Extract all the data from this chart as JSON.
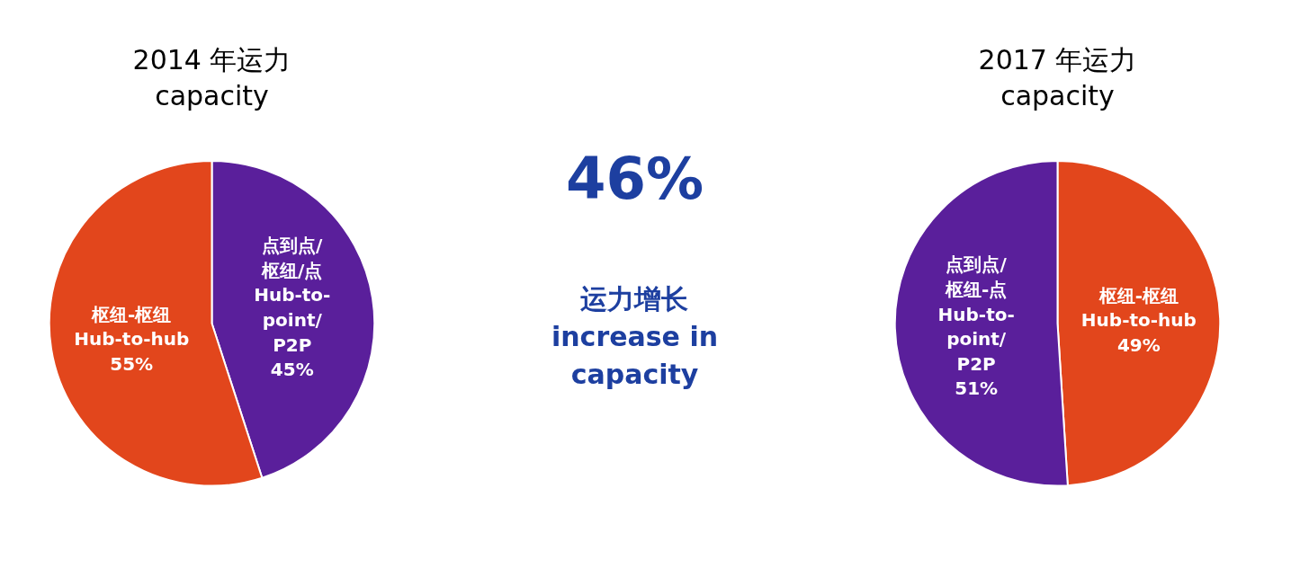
{
  "chart_data": [
    {
      "type": "pie",
      "title": "2014 年运力\ncapacity",
      "categories": [
        "点到点/\n枢纽/点\nHub-to-\npoint/\nP2P",
        "枢纽-枢纽\nHub-to-hub"
      ],
      "values": [
        45,
        55
      ],
      "value_labels": [
        "45%",
        "55%"
      ],
      "colors": [
        "#5a1f9b",
        "#e2461c"
      ],
      "legend": false
    },
    {
      "type": "other",
      "annotations": [
        "46%",
        "运力增长\nincrease in\ncapacity"
      ]
    },
    {
      "type": "pie",
      "title": "2017 年运力\ncapacity",
      "categories": [
        "枢纽-枢纽\nHub-to-hub",
        "点到点/\n枢纽-点\nHub-to-\npoint/\nP2P"
      ],
      "values": [
        49,
        51
      ],
      "value_labels": [
        "49%",
        "51%"
      ],
      "colors": [
        "#e2461c",
        "#5a1f9b"
      ],
      "legend": false
    }
  ]
}
